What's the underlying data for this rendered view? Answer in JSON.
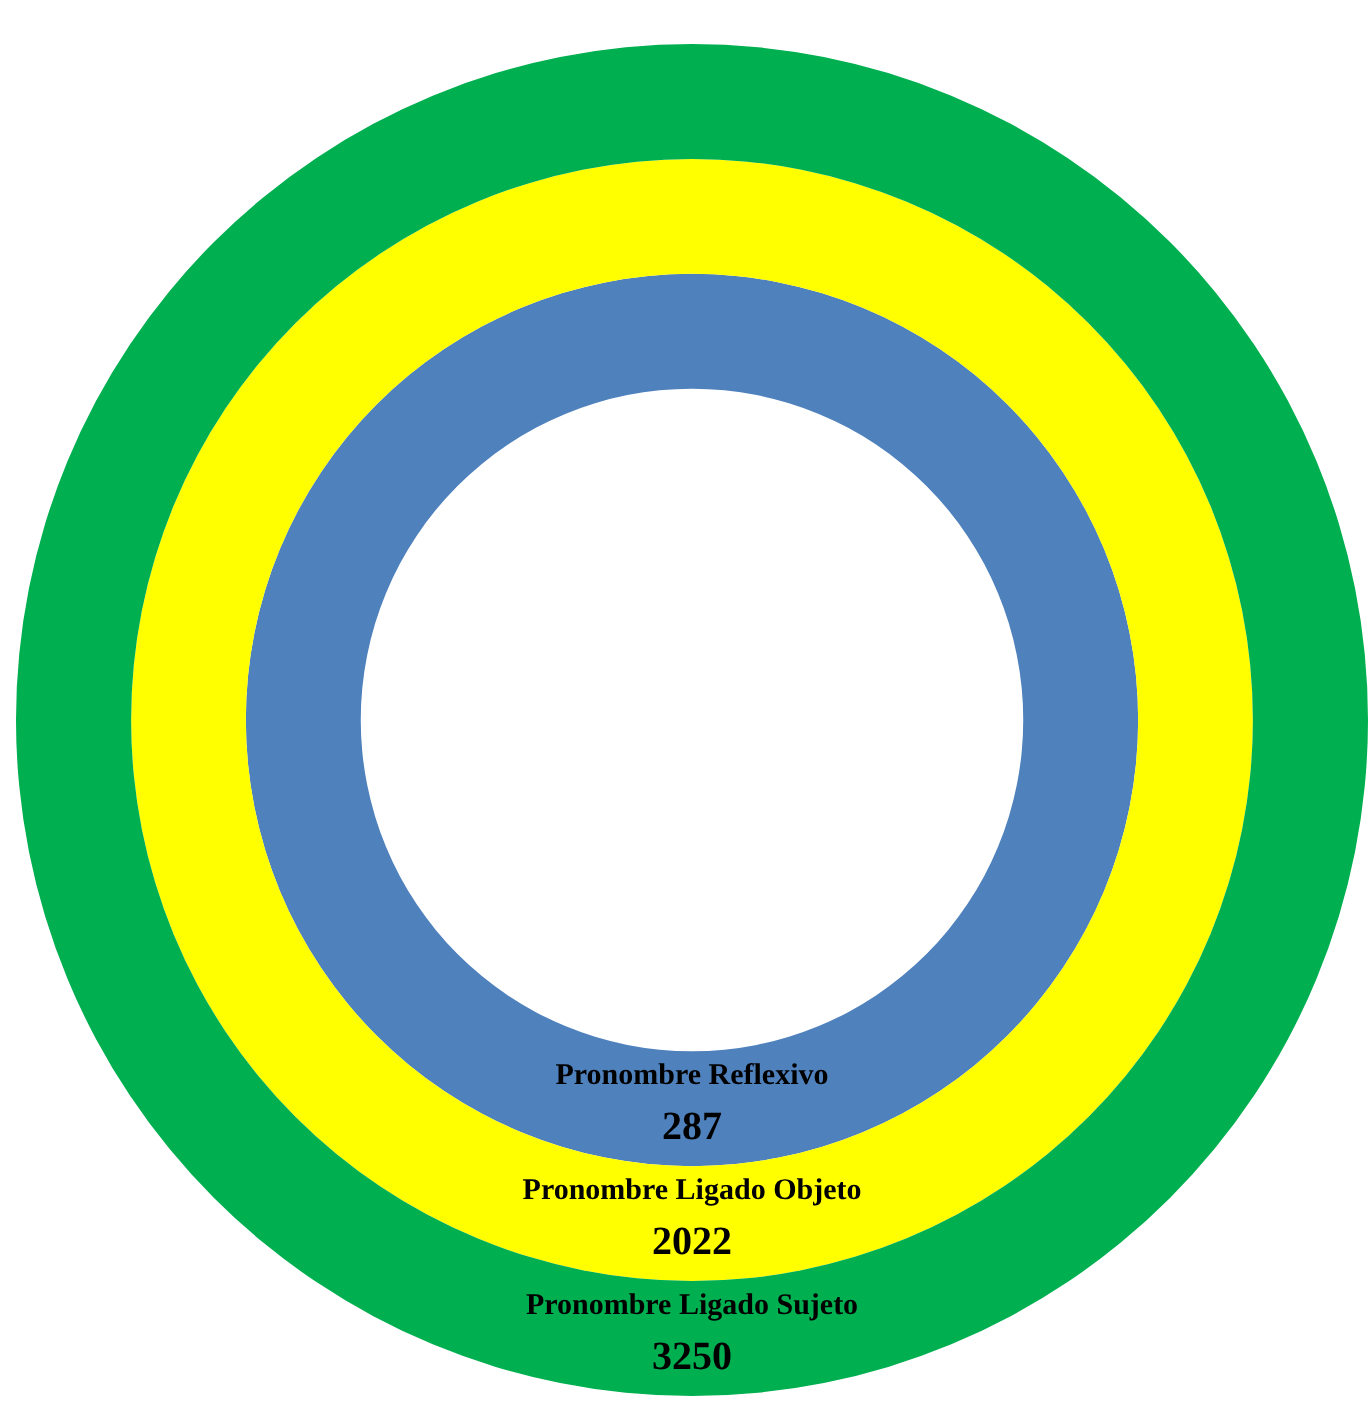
{
  "chart_data": {
    "type": "other",
    "categories": [
      "Pronombre Reflexivo",
      "Pronombre Ligado Objeto",
      "Pronombre Ligado Sujeto"
    ],
    "values": [
      287,
      2022,
      3250
    ],
    "colors": [
      "#4f81bd",
      "#ffff00",
      "#00b050"
    ],
    "data_labels": true
  }
}
